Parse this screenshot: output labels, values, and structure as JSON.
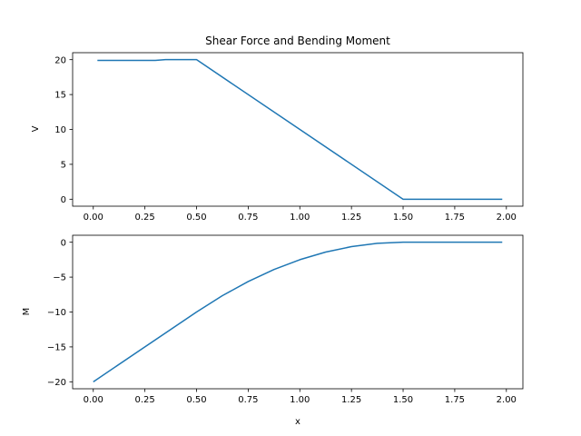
{
  "chart_data": [
    {
      "type": "line",
      "title": "Shear Force and Bending Moment",
      "xlabel": "",
      "ylabel": "V",
      "xlim": [
        -0.1,
        2.08
      ],
      "ylim": [
        -1.0,
        21.0
      ],
      "xticks": [
        0.0,
        0.25,
        0.5,
        0.75,
        1.0,
        1.25,
        1.5,
        1.75,
        2.0
      ],
      "xtick_labels": [
        "0.00",
        "0.25",
        "0.50",
        "0.75",
        "1.00",
        "1.25",
        "1.50",
        "1.75",
        "2.00"
      ],
      "yticks": [
        0,
        5,
        10,
        15,
        20
      ],
      "ytick_labels": [
        "0",
        "5",
        "10",
        "15",
        "20"
      ],
      "grid": false,
      "series": [
        {
          "color": "#1f77b4",
          "x": [
            0.02,
            0.3,
            0.35,
            0.5,
            1.0,
            1.5,
            1.98
          ],
          "y": [
            19.9,
            19.9,
            20.0,
            20.0,
            10.0,
            0.0,
            0.0
          ]
        }
      ]
    },
    {
      "type": "line",
      "title": "",
      "xlabel": "x",
      "ylabel": "M",
      "xlim": [
        -0.1,
        2.08
      ],
      "ylim": [
        -21.0,
        1.0
      ],
      "xticks": [
        0.0,
        0.25,
        0.5,
        0.75,
        1.0,
        1.25,
        1.5,
        1.75,
        2.0
      ],
      "xtick_labels": [
        "0.00",
        "0.25",
        "0.50",
        "0.75",
        "1.00",
        "1.25",
        "1.50",
        "1.75",
        "2.00"
      ],
      "yticks": [
        -20,
        -15,
        -10,
        -5,
        0
      ],
      "ytick_labels": [
        "−20",
        "−15",
        "−10",
        "−5",
        "0"
      ],
      "grid": false,
      "series": [
        {
          "color": "#1f77b4",
          "x": [
            0.0,
            0.25,
            0.5,
            0.625,
            0.75,
            0.875,
            1.0,
            1.125,
            1.25,
            1.375,
            1.5,
            1.75,
            1.98
          ],
          "y": [
            -20.0,
            -15.0,
            -10.0,
            -7.66,
            -5.63,
            -3.91,
            -2.5,
            -1.41,
            -0.63,
            -0.16,
            0.0,
            0.0,
            0.0
          ]
        }
      ]
    }
  ]
}
